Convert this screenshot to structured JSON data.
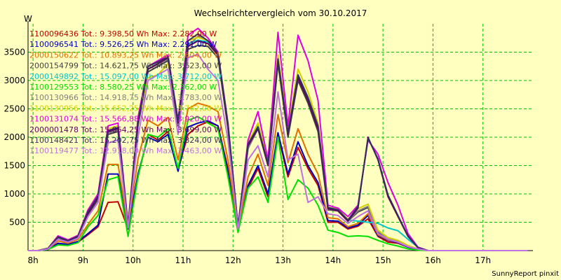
{
  "chart_data": {
    "type": "line",
    "title": "Wechselrichtervergleich vom 30.10.2017",
    "ylabel": "W",
    "footer": "SunnyReport pinxit",
    "ylim": [
      0,
      4000
    ],
    "y_ticks": [
      500,
      1000,
      1500,
      2000,
      2500,
      3000,
      3500
    ],
    "x_ticks": [
      "8h",
      "9h",
      "10h",
      "11h",
      "12h",
      "13h",
      "14h",
      "15h",
      "16h",
      "17h"
    ],
    "grid": true,
    "legend_position": "top-left",
    "x": [
      7.9,
      8.1,
      8.3,
      8.5,
      8.7,
      8.9,
      9.1,
      9.3,
      9.5,
      9.7,
      9.9,
      10.1,
      10.3,
      10.5,
      10.7,
      10.9,
      11.1,
      11.3,
      11.5,
      11.7,
      11.9,
      12.1,
      12.3,
      12.5,
      12.7,
      12.9,
      13.1,
      13.3,
      13.5,
      13.7,
      13.9,
      14.1,
      14.3,
      14.5,
      14.7,
      14.9,
      15.1,
      15.3,
      15.5,
      15.7,
      15.9,
      16.1,
      16.3,
      16.5,
      16.7,
      16.9,
      17.1,
      17.3,
      17.5,
      17.7,
      17.9
    ],
    "series": [
      {
        "name": "1100096436",
        "legend": "1100096436 Tot.: 9.398,50 Wh Max: 2.282,00 W",
        "color": "#c00000",
        "values": [
          0,
          0,
          20,
          120,
          100,
          150,
          280,
          420,
          850,
          860,
          380,
          1300,
          2050,
          1950,
          2100,
          1420,
          2050,
          2200,
          2270,
          2200,
          1450,
          350,
          1100,
          1450,
          950,
          2050,
          1300,
          1820,
          1450,
          1150,
          500,
          500,
          380,
          430,
          560,
          250,
          150,
          130,
          60,
          30,
          0,
          0,
          0,
          0,
          0,
          0,
          0,
          0,
          0,
          0,
          0
        ]
      },
      {
        "name": "1100096541",
        "legend": "1100096541 Tot.: 9.526,25 Wh Max: 2.291,00 W",
        "color": "#0000c0",
        "values": [
          0,
          0,
          20,
          130,
          110,
          160,
          300,
          450,
          1350,
          1350,
          390,
          1350,
          2000,
          1920,
          2050,
          1400,
          2180,
          2250,
          2290,
          2200,
          1380,
          360,
          1150,
          1500,
          1000,
          2080,
          1350,
          1920,
          1500,
          1200,
          530,
          520,
          400,
          450,
          620,
          260,
          180,
          140,
          60,
          30,
          0,
          0,
          0,
          0,
          0,
          0,
          0,
          0,
          0,
          0,
          0
        ]
      },
      {
        "name": "2000150622",
        "legend": "2000150622 Tot.: 10.893,25 Wh Max: 2.604,00 W",
        "color": "#e07000",
        "values": [
          0,
          0,
          30,
          170,
          130,
          200,
          460,
          700,
          1520,
          1520,
          410,
          1620,
          2300,
          2200,
          2350,
          1600,
          2500,
          2600,
          2550,
          2450,
          1600,
          380,
          1300,
          1700,
          1150,
          2400,
          1550,
          2150,
          1700,
          1350,
          580,
          560,
          420,
          480,
          650,
          280,
          190,
          150,
          70,
          30,
          0,
          0,
          0,
          0,
          0,
          0,
          0,
          0,
          0,
          0,
          0
        ]
      },
      {
        "name": "2000154799",
        "legend": "2000154799 Tot.: 14.621,75 Wh Max: 3.623,00 W",
        "color": "#404040",
        "values": [
          0,
          0,
          40,
          230,
          160,
          240,
          640,
          900,
          2050,
          2100,
          430,
          2200,
          3150,
          3250,
          3350,
          2200,
          3550,
          3620,
          3600,
          3400,
          2150,
          400,
          1800,
          2150,
          1500,
          3300,
          2000,
          3000,
          2600,
          2100,
          720,
          700,
          520,
          680,
          760,
          320,
          200,
          160,
          80,
          30,
          0,
          0,
          0,
          0,
          0,
          0,
          0,
          0,
          0,
          0,
          0
        ]
      },
      {
        "name": "2000149892",
        "legend": "2000149892 Tot.: 15.097,00 Wh Max: 3.712,00 W",
        "color": "#00c8c8",
        "values": [
          0,
          0,
          40,
          240,
          170,
          250,
          680,
          950,
          2100,
          2150,
          440,
          2250,
          3200,
          3300,
          3400,
          2250,
          3650,
          3712,
          3680,
          3450,
          2200,
          420,
          1850,
          2200,
          1550,
          3400,
          2100,
          3100,
          2700,
          2200,
          750,
          720,
          540,
          520,
          500,
          480,
          400,
          350,
          200,
          60,
          0,
          0,
          0,
          0,
          0,
          0,
          0,
          0,
          0,
          0,
          0
        ]
      },
      {
        "name": "1100129553",
        "legend": "1100129553 Tot.: 8.580,25 Wh Max: 2.362,00 W",
        "color": "#00e000",
        "values": [
          0,
          0,
          20,
          100,
          90,
          140,
          420,
          620,
          1250,
          1300,
          250,
          1300,
          2050,
          2000,
          2150,
          1450,
          2300,
          2362,
          2250,
          2150,
          1300,
          320,
          1100,
          1300,
          850,
          2000,
          900,
          1250,
          1100,
          800,
          360,
          320,
          250,
          260,
          250,
          180,
          120,
          80,
          30,
          10,
          0,
          0,
          0,
          0,
          0,
          0,
          0,
          0,
          0,
          0,
          0
        ]
      },
      {
        "name": "1100130966",
        "legend": "1100130966 Tot.: 14.918,75 Wh Max: 3.783,00 W",
        "color": "#808080",
        "values": [
          0,
          0,
          40,
          240,
          170,
          250,
          670,
          920,
          2080,
          2120,
          430,
          2230,
          3200,
          3280,
          3380,
          2230,
          3600,
          3783,
          3700,
          3450,
          2200,
          400,
          1800,
          2150,
          1500,
          3350,
          2050,
          3050,
          2650,
          2150,
          730,
          700,
          520,
          700,
          780,
          340,
          220,
          170,
          80,
          30,
          0,
          0,
          0,
          0,
          0,
          0,
          0,
          0,
          0,
          0,
          0
        ]
      },
      {
        "name": "1100130956",
        "legend": "1100130956 Tot.: 15.652,25 Wh Max: 3.762,00 W",
        "color": "#d0d000",
        "values": [
          0,
          0,
          40,
          250,
          180,
          260,
          700,
          980,
          2150,
          2200,
          450,
          2300,
          3050,
          3100,
          3300,
          2300,
          3700,
          3762,
          3700,
          3500,
          2250,
          430,
          1900,
          2250,
          1600,
          3450,
          2150,
          3200,
          2800,
          2250,
          760,
          730,
          550,
          740,
          820,
          360,
          230,
          180,
          90,
          30,
          0,
          0,
          0,
          0,
          0,
          0,
          0,
          0,
          0,
          0,
          0
        ]
      },
      {
        "name": "1100131074",
        "legend": "1100131074 Tot.: 15.566,88 Wh Max: 3.920,00 W",
        "color": "#e000e0",
        "values": [
          0,
          0,
          40,
          260,
          190,
          270,
          720,
          1000,
          2200,
          2250,
          460,
          2350,
          3250,
          3350,
          3450,
          2300,
          3800,
          3920,
          3750,
          3500,
          2250,
          430,
          1950,
          2450,
          1600,
          3850,
          2200,
          3800,
          3350,
          2650,
          800,
          750,
          600,
          800,
          1950,
          1700,
          1200,
          800,
          300,
          60,
          0,
          0,
          0,
          0,
          0,
          0,
          0,
          0,
          0,
          0,
          0
        ]
      },
      {
        "name": "2000001478",
        "legend": "2000001478 Tot.: 15.064,25 Wh Max: 3.699,00 W",
        "color": "#600060",
        "values": [
          0,
          0,
          40,
          240,
          170,
          250,
          660,
          930,
          2100,
          2150,
          430,
          2250,
          3200,
          3300,
          3400,
          2250,
          3600,
          3699,
          3650,
          3450,
          2200,
          410,
          1850,
          2150,
          1500,
          3350,
          2050,
          3050,
          2650,
          2150,
          740,
          700,
          520,
          750,
          2000,
          1600,
          950,
          600,
          250,
          50,
          0,
          0,
          0,
          0,
          0,
          0,
          0,
          0,
          0,
          0,
          0
        ]
      },
      {
        "name": "1100148421",
        "legend": "1100148421 Tot.: 15.202,75 Wh Max: 3.824,00 W",
        "color": "#303060",
        "values": [
          0,
          0,
          40,
          240,
          175,
          255,
          690,
          960,
          2120,
          2170,
          440,
          2270,
          3250,
          3330,
          3420,
          2280,
          3700,
          3824,
          3700,
          3480,
          2230,
          420,
          1880,
          2180,
          1530,
          3380,
          2080,
          3100,
          2700,
          2200,
          760,
          720,
          540,
          780,
          1980,
          1620,
          980,
          620,
          260,
          50,
          0,
          0,
          0,
          0,
          0,
          0,
          0,
          0,
          0,
          0,
          0
        ]
      },
      {
        "name": "1100119477",
        "legend": "1100119477 Tot.: 12.918,00 Wh Max: 3.463,00 W",
        "color": "#c070e0",
        "values": [
          0,
          0,
          30,
          200,
          150,
          220,
          600,
          850,
          1900,
          1950,
          400,
          2000,
          3000,
          3100,
          3200,
          2050,
          3400,
          3463,
          3200,
          3000,
          1950,
          380,
          1600,
          1850,
          1300,
          2800,
          1600,
          1700,
          850,
          950,
          650,
          620,
          480,
          600,
          700,
          300,
          200,
          150,
          70,
          30,
          0,
          0,
          0,
          0,
          0,
          0,
          0,
          0,
          0,
          0,
          0
        ]
      }
    ]
  }
}
